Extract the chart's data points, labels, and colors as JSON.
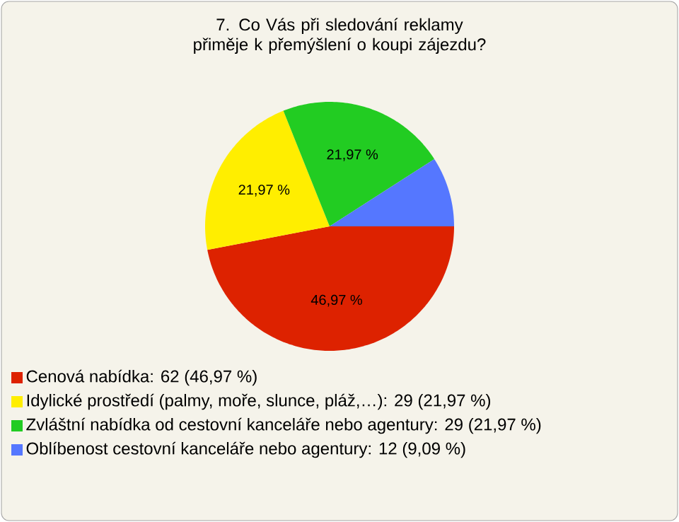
{
  "chart_data": {
    "type": "pie",
    "title": "7. Co Vás při sledování reklamy přiměje k přemýšlení o koupi zájezdu?",
    "categories": [
      "Cenová nabídka: 62 (46,97 %)",
      "Idylické prostředí (palmy, moře, slunce, pláž,…): 29 (21,97 %)",
      "Zvláštní nabídka od cestovní kanceláře nebo agentury: 29 (21,97 %)",
      "Oblíbenost cestovní kanceláře nebo agentury: 12 (9,09 %)"
    ],
    "values": [
      46.97,
      21.97,
      21.97,
      9.09
    ],
    "colors": [
      "#dd2200",
      "#ffee00",
      "#22cc22",
      "#5577ff"
    ],
    "value_labels": [
      "46,97 %",
      "21,97 %",
      "21,97 %",
      null
    ],
    "legend": "bottom"
  }
}
